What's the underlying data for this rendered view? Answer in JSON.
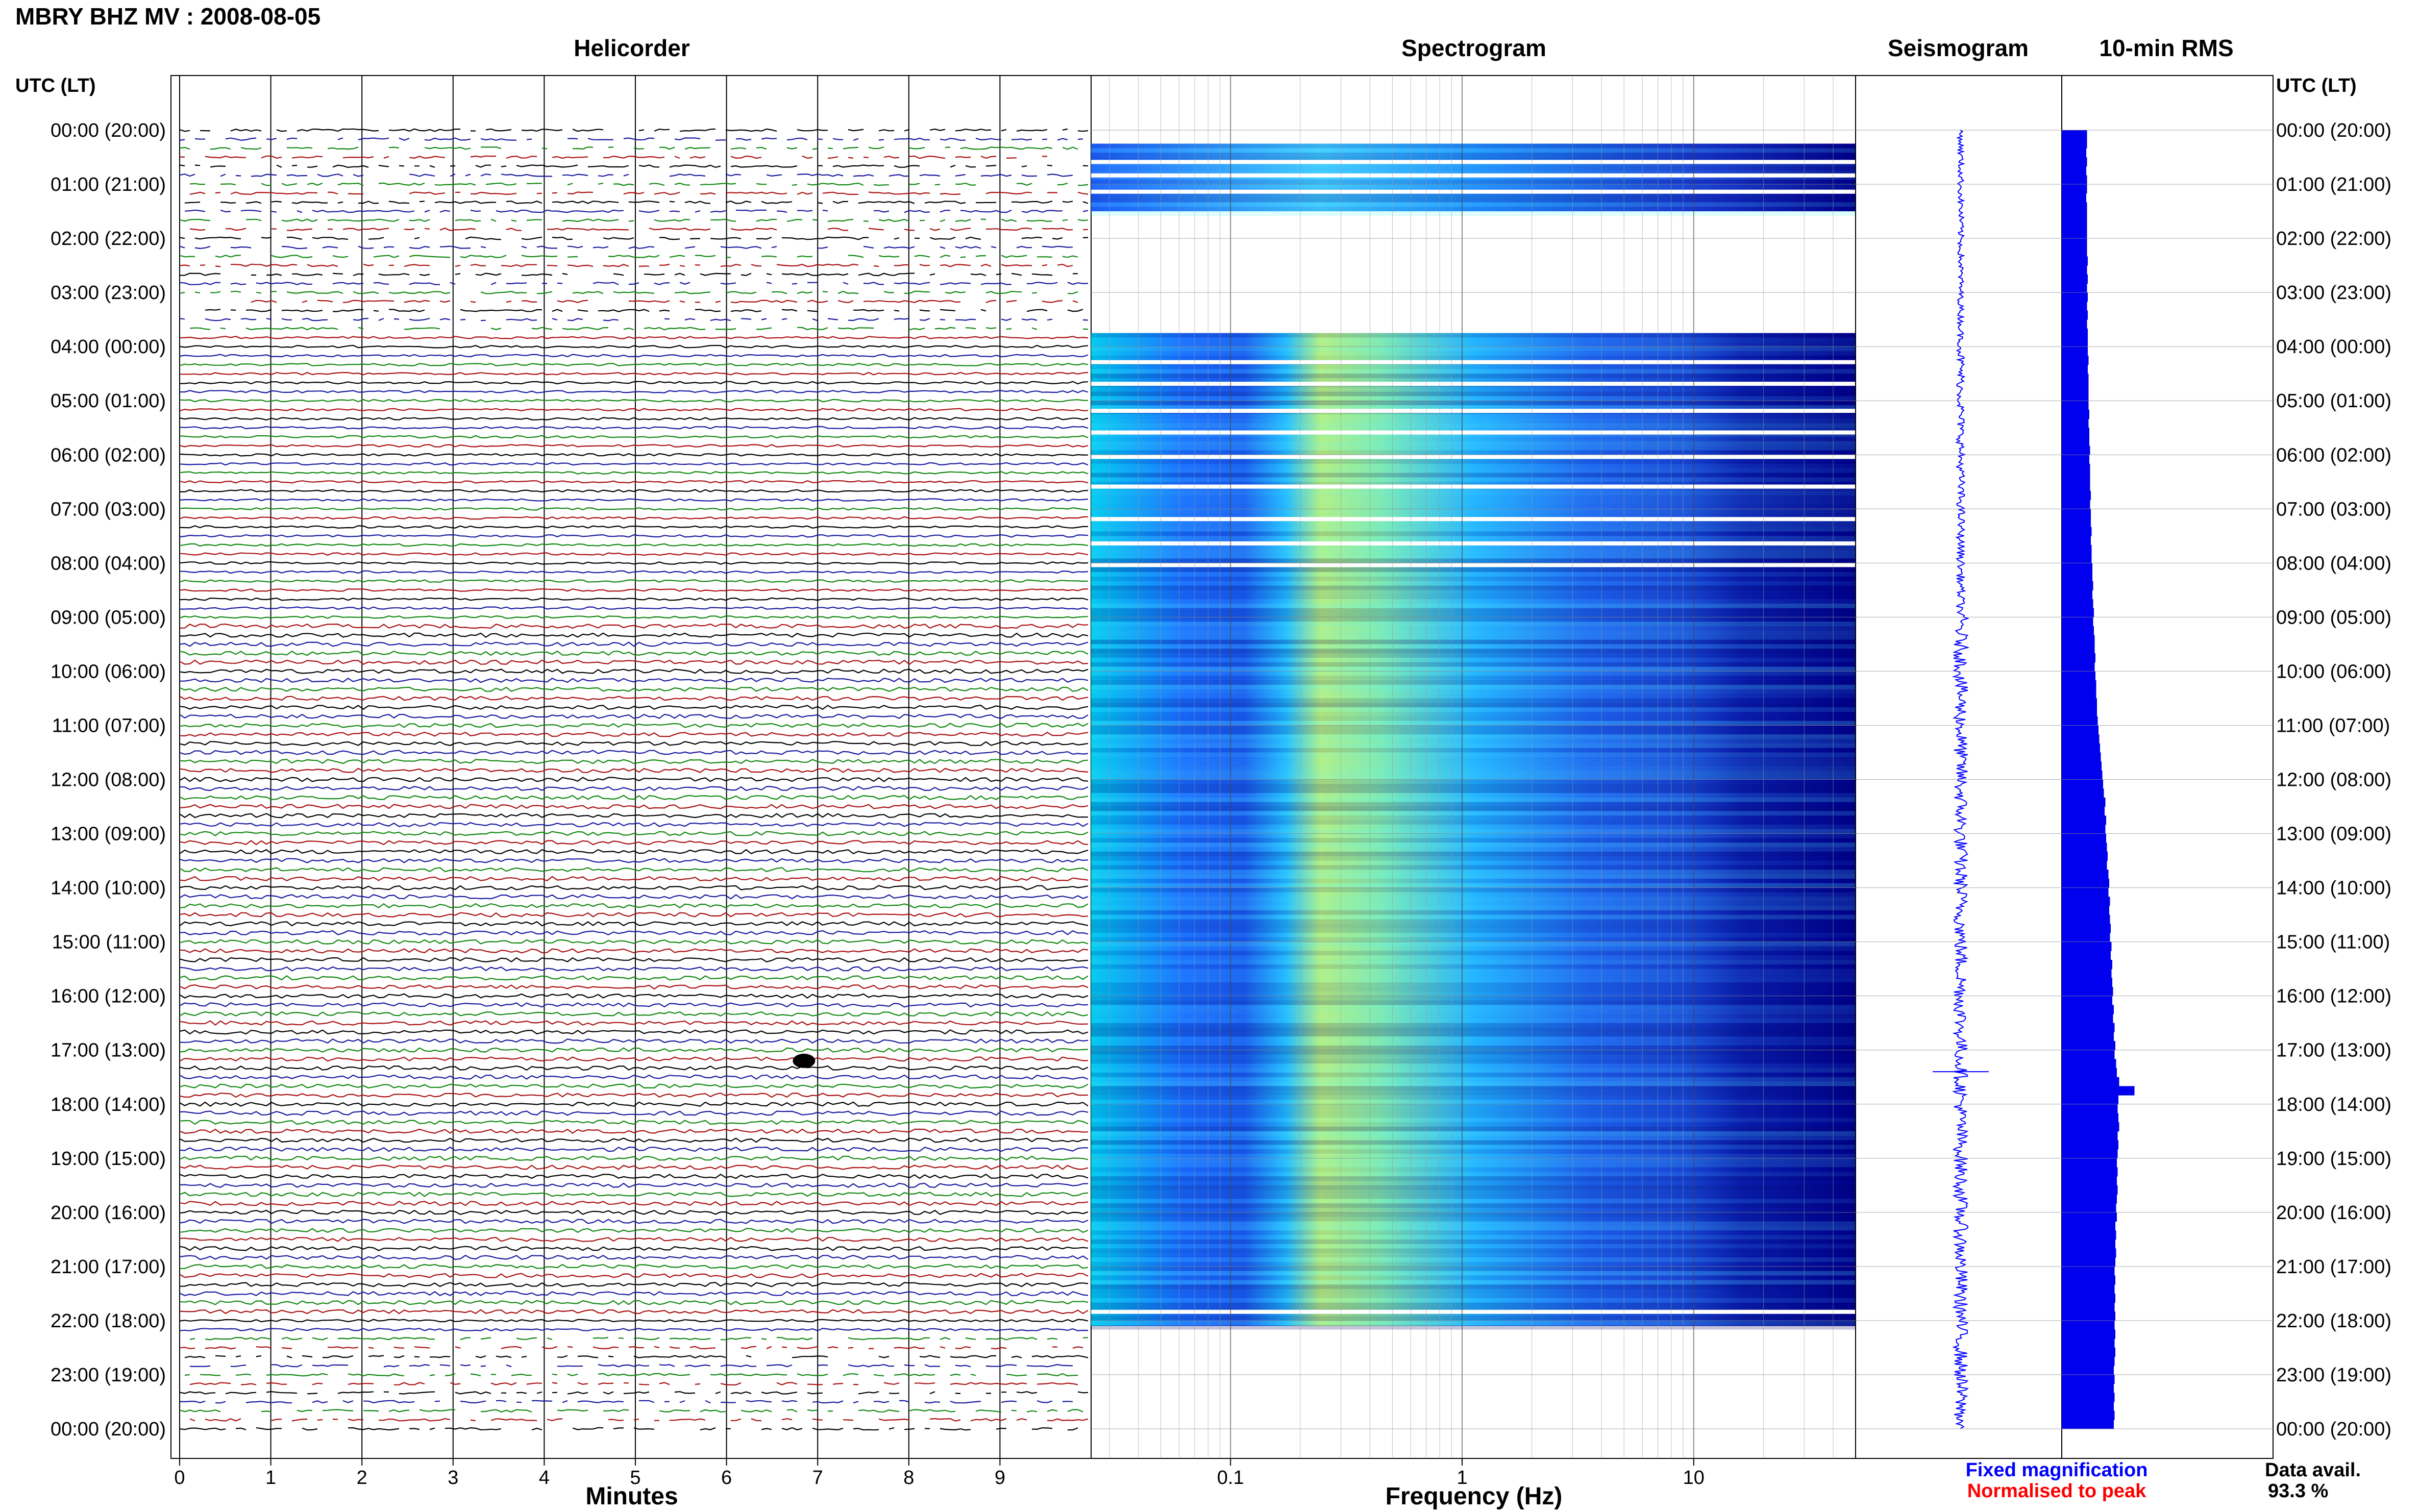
{
  "header": {
    "station_title": "MBRY BHZ MV : 2008-08-05"
  },
  "panels": {
    "helicorder": "Helicorder",
    "spectrogram": "Spectrogram",
    "seismogram": "Seismogram",
    "rms": "10-min RMS"
  },
  "axes": {
    "time_label_left": "UTC (LT)",
    "time_label_right": "UTC (LT)",
    "minutes_label": "Minutes",
    "frequency_label": "Frequency (Hz)"
  },
  "legend": {
    "fixed": "Fixed magnification",
    "normalised": "Normalised to peak",
    "fixed_color": "#0000ff",
    "normalised_color": "#ff0000"
  },
  "availability": {
    "label": "Data avail.",
    "value": "93.3 %"
  },
  "colors": {
    "trace_colors": [
      "#000000",
      "#1a1aa0",
      "#118811",
      "#aa1111"
    ],
    "rms_color": "#0000ee",
    "spectro_dark": "#00008b",
    "spectro_mid": "#1e64ff",
    "spectro_cyan": "#00d8ff",
    "spectro_yellow": "#e8f060"
  },
  "chart_data": {
    "type": "heatmap",
    "title": "MBRY BHZ MV : 2008-08-05",
    "hour_labels": [
      "00:00 (20:00)",
      "01:00 (21:00)",
      "02:00 (22:00)",
      "03:00 (23:00)",
      "04:00 (00:00)",
      "05:00 (01:00)",
      "06:00 (02:00)",
      "07:00 (03:00)",
      "08:00 (04:00)",
      "09:00 (05:00)",
      "10:00 (06:00)",
      "11:00 (07:00)",
      "12:00 (08:00)",
      "13:00 (09:00)",
      "14:00 (10:00)",
      "15:00 (11:00)",
      "16:00 (12:00)",
      "17:00 (13:00)",
      "18:00 (14:00)",
      "19:00 (15:00)",
      "20:00 (16:00)",
      "21:00 (17:00)",
      "22:00 (18:00)",
      "23:00 (19:00)",
      "00:00 (20:00)"
    ],
    "minutes_ticks": [
      "0",
      "1",
      "2",
      "3",
      "4",
      "5",
      "6",
      "7",
      "8",
      "9"
    ],
    "minutes_range": [
      0,
      10
    ],
    "freq_ticks": [
      {
        "label": "0.1",
        "value": 0.1
      },
      {
        "label": "1",
        "value": 1
      },
      {
        "label": "10",
        "value": 10
      }
    ],
    "freq_range": [
      0.025,
      50
    ],
    "freq_scale": "log",
    "rows_per_hour": 6,
    "spectrogram_data_hours": [
      [
        0.25,
        1.5
      ],
      [
        3.75,
        22.1
      ]
    ],
    "rms_10min_relative": [
      0.33,
      0.33,
      0.32,
      0.33,
      0.32,
      0.33,
      0.33,
      0.32,
      0.33,
      0.33,
      0.33,
      0.33,
      0.33,
      0.33,
      0.34,
      0.33,
      0.34,
      0.33,
      0.34,
      0.33,
      0.34,
      0.33,
      0.34,
      0.34,
      0.34,
      0.35,
      0.34,
      0.35,
      0.35,
      0.35,
      0.35,
      0.36,
      0.35,
      0.36,
      0.36,
      0.37,
      0.36,
      0.37,
      0.37,
      0.37,
      0.38,
      0.37,
      0.38,
      0.38,
      0.39,
      0.38,
      0.39,
      0.39,
      0.4,
      0.4,
      0.41,
      0.4,
      0.41,
      0.42,
      0.41,
      0.42,
      0.43,
      0.43,
      0.44,
      0.43,
      0.44,
      0.45,
      0.45,
      0.46,
      0.46,
      0.47,
      0.48,
      0.49,
      0.5,
      0.51,
      0.52,
      0.53,
      0.54,
      0.55,
      0.57,
      0.56,
      0.58,
      0.57,
      0.58,
      0.59,
      0.6,
      0.59,
      0.61,
      0.62,
      0.61,
      0.63,
      0.62,
      0.63,
      0.64,
      0.63,
      0.65,
      0.64,
      0.66,
      0.65,
      0.66,
      0.67,
      0.66,
      0.68,
      0.67,
      0.69,
      0.68,
      0.7,
      0.69,
      0.71,
      0.72,
      0.75,
      0.95,
      0.74,
      0.73,
      0.74,
      0.75,
      0.73,
      0.74,
      0.73,
      0.72,
      0.73,
      0.72,
      0.73,
      0.72,
      0.71,
      0.72,
      0.7,
      0.71,
      0.7,
      0.71,
      0.7,
      0.69,
      0.7,
      0.69,
      0.7,
      0.69,
      0.7,
      0.69,
      0.7,
      0.69,
      0.7,
      0.69,
      0.68,
      0.69,
      0.68,
      0.69,
      0.68,
      0.69,
      0.68
    ]
  }
}
